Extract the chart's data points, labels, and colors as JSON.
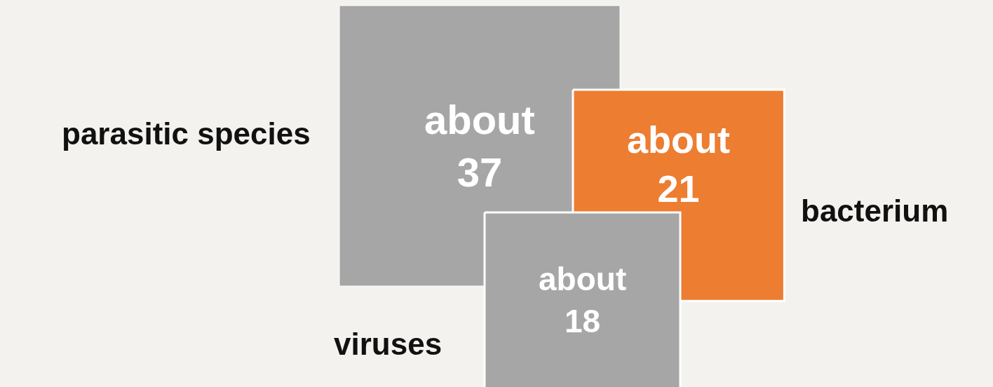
{
  "chart_data": {
    "type": "other",
    "categories": [
      "parasitic species",
      "bacterium",
      "viruses"
    ],
    "values": [
      37,
      21,
      18
    ],
    "value_labels": [
      "about 37",
      "about 21",
      "about 18"
    ],
    "colors": [
      "#a6a6a6",
      "#ed7d31",
      "#a6a6a6"
    ]
  }
}
